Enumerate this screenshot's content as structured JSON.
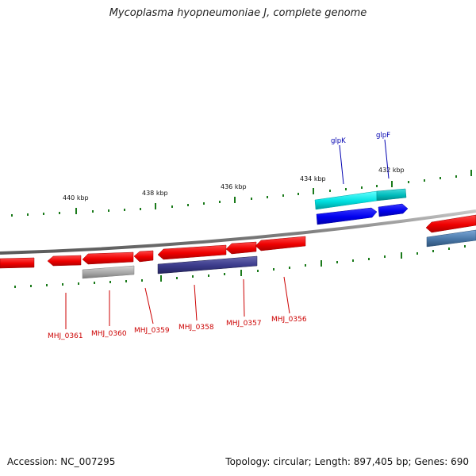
{
  "title": "Mycoplasma hyopneumoniae J, complete genome",
  "footer": {
    "accession": "Accession: NC_007295",
    "stats": "Topology: circular; Length: 897,405 bp; Genes: 690"
  },
  "scale_labels": [
    "440 kbp",
    "438 kbp",
    "436 kbp",
    "434 kbp",
    "432 kbp"
  ],
  "gene_labels_top": [
    "glpK",
    "glpF"
  ],
  "gene_labels_bottom": [
    "MHJ_0361",
    "MHJ_0360",
    "MHJ_0359",
    "MHJ_0358",
    "MHJ_0357",
    "MHJ_0356"
  ],
  "colors": {
    "forward_cds": "#0000ee",
    "forward_cds_alt": "#00dddd",
    "reverse_cds": "#ee0000",
    "reverse_alt": "#3a3a8a",
    "grey_feature": "#999999",
    "steel_feature": "#4a78a8",
    "backbone": "#888888",
    "tick": "#1a7a1a",
    "top_label": "#0000b0",
    "bottom_label": "#cc0000"
  },
  "icons": {
    "forward_gene": "right-arrow-icon",
    "reverse_gene": "left-arrow-icon"
  }
}
